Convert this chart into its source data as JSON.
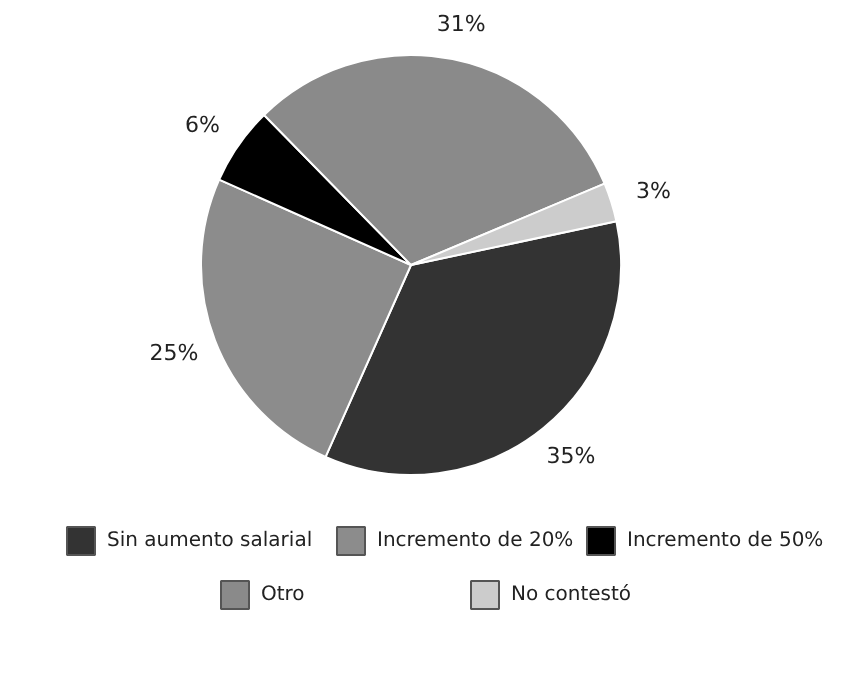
{
  "chart_data": {
    "type": "pie",
    "categories": [
      "Sin aumento salarial",
      "Incremento de 20%",
      "Incremento de 50%",
      "Otro",
      "No contestó"
    ],
    "values": [
      35,
      25,
      6,
      31,
      3
    ],
    "colors": [
      "#333333",
      "#8c8c8c",
      "#000000",
      "#8a8a8a",
      "#cccccc"
    ],
    "value_labels": [
      "35%",
      "25%",
      "6%",
      "31%",
      "3%"
    ],
    "legend": "bottom"
  }
}
